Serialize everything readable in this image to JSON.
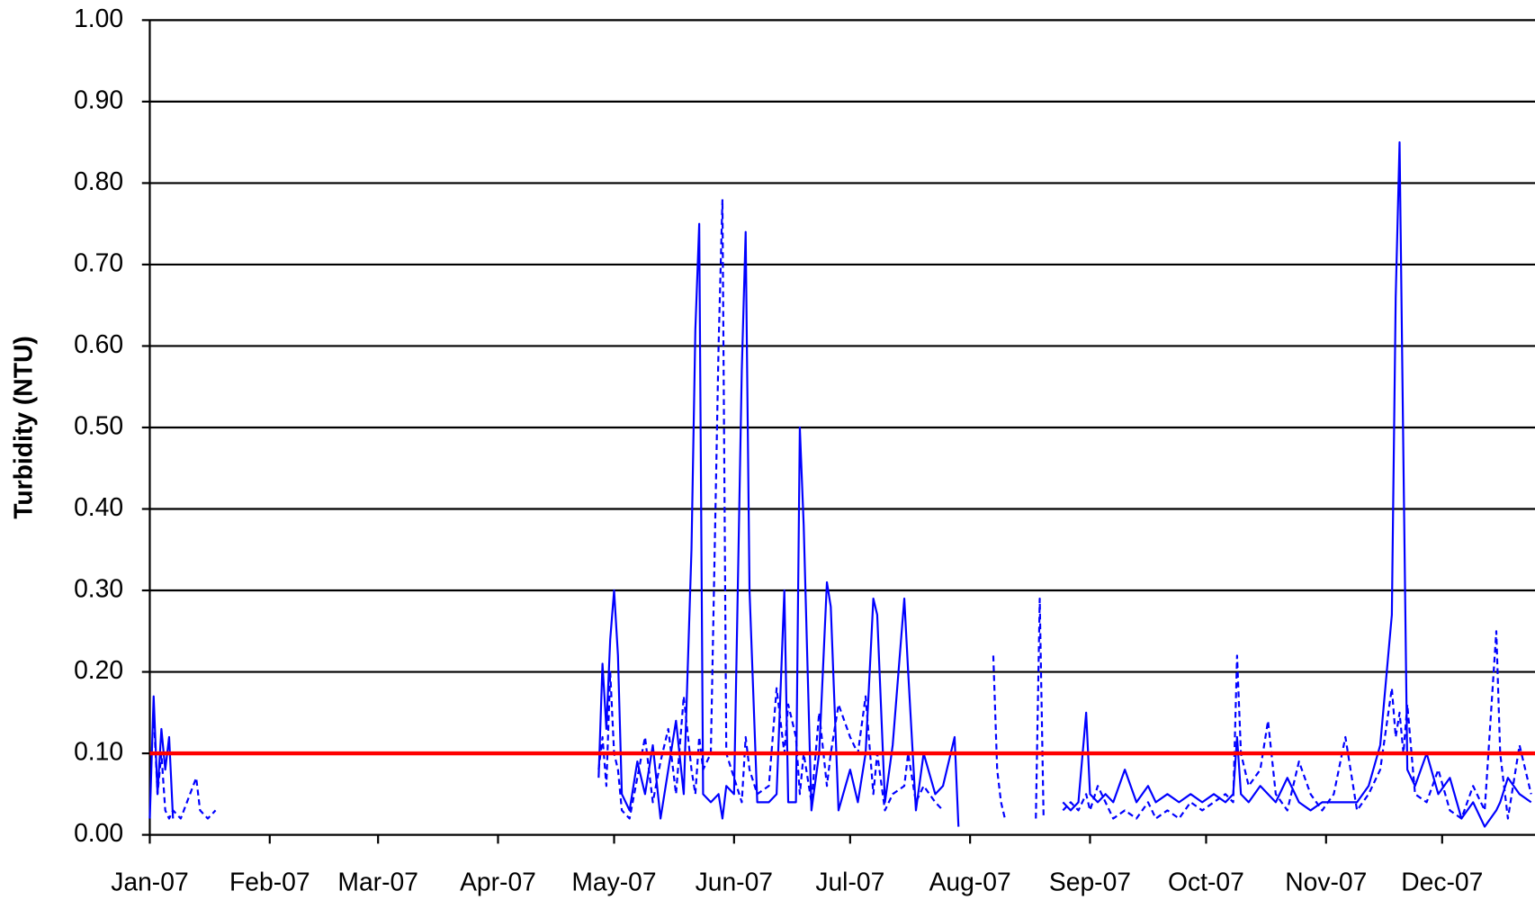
{
  "chart_data": {
    "type": "line",
    "y_label": "Turbidity (NTU)",
    "xlim": [
      0,
      358
    ],
    "xticks": [
      {
        "value": 0,
        "label": "Jan-07"
      },
      {
        "value": 31,
        "label": "Feb-07"
      },
      {
        "value": 59,
        "label": "Mar-07"
      },
      {
        "value": 90,
        "label": "Apr-07"
      },
      {
        "value": 120,
        "label": "May-07"
      },
      {
        "value": 151,
        "label": "Jun-07"
      },
      {
        "value": 181,
        "label": "Jul-07"
      },
      {
        "value": 212,
        "label": "Aug-07"
      },
      {
        "value": 243,
        "label": "Sep-07"
      },
      {
        "value": 273,
        "label": "Oct-07"
      },
      {
        "value": 304,
        "label": "Nov-07"
      },
      {
        "value": 334,
        "label": "Dec-07"
      }
    ],
    "ylim": [
      0,
      1
    ],
    "yticks": [
      {
        "value": 0,
        "label": "0.00"
      },
      {
        "value": 0.1,
        "label": "0.10"
      },
      {
        "value": 0.2,
        "label": "0.20"
      },
      {
        "value": 0.3,
        "label": "0.30"
      },
      {
        "value": 0.4,
        "label": "0.40"
      },
      {
        "value": 0.5,
        "label": "0.50"
      },
      {
        "value": 0.6,
        "label": "0.60"
      },
      {
        "value": 0.7,
        "label": "0.70"
      },
      {
        "value": 0.8,
        "label": "0.80"
      },
      {
        "value": 0.9,
        "label": "0.90"
      },
      {
        "value": 1,
        "label": "1.00"
      }
    ],
    "grid": true,
    "reference_line": {
      "value": 0.1,
      "color": "#ff0000"
    },
    "x": [
      0,
      1,
      2,
      3,
      4,
      5,
      6,
      8,
      12,
      13,
      15,
      17,
      40,
      116,
      117,
      118,
      119,
      120,
      121,
      122,
      124,
      126,
      128,
      130,
      132,
      134,
      136,
      138,
      140,
      141,
      142,
      143,
      145,
      147,
      148,
      149,
      151,
      153,
      154,
      155,
      157,
      160,
      162,
      164,
      165,
      167,
      168,
      169,
      171,
      173,
      175,
      176,
      178,
      181,
      183,
      185,
      187,
      188,
      190,
      192,
      195,
      196,
      198,
      200,
      203,
      205,
      208,
      209,
      212,
      218,
      219,
      220,
      221,
      223,
      229,
      230,
      231,
      233,
      236,
      238,
      240,
      242,
      243,
      245,
      247,
      249,
      252,
      255,
      258,
      260,
      263,
      266,
      269,
      272,
      275,
      278,
      280,
      281,
      282,
      284,
      287,
      289,
      291,
      294,
      297,
      300,
      303,
      306,
      309,
      312,
      315,
      318,
      321,
      322,
      323,
      324,
      325,
      327,
      330,
      333,
      336,
      339,
      342,
      345,
      348,
      349,
      351,
      354,
      357
    ],
    "series": [
      {
        "color": "#0000ff",
        "dashed": false,
        "values": [
          0.02,
          0.17,
          0.05,
          0.13,
          0.08,
          0.12,
          0.02,
          null,
          null,
          null,
          null,
          null,
          null,
          0.07,
          0.21,
          0.13,
          0.24,
          0.3,
          0.22,
          0.05,
          0.03,
          0.09,
          0.05,
          0.11,
          0.02,
          0.08,
          0.14,
          0.05,
          0.35,
          0.62,
          0.75,
          0.05,
          0.04,
          0.05,
          0.02,
          0.06,
          0.05,
          0.57,
          0.74,
          0.3,
          0.04,
          0.04,
          0.05,
          0.3,
          0.04,
          0.04,
          0.5,
          0.38,
          0.03,
          0.1,
          0.31,
          0.28,
          0.03,
          0.08,
          0.04,
          0.1,
          0.29,
          0.27,
          0.04,
          0.11,
          0.29,
          0.2,
          0.03,
          0.1,
          0.05,
          0.06,
          0.12,
          0.01,
          null,
          null,
          null,
          null,
          null,
          null,
          null,
          null,
          null,
          null,
          0.04,
          0.03,
          0.04,
          0.15,
          0.05,
          0.04,
          0.05,
          0.04,
          0.08,
          0.04,
          0.06,
          0.04,
          0.05,
          0.04,
          0.05,
          0.04,
          0.05,
          0.04,
          0.05,
          0.12,
          0.05,
          0.04,
          0.06,
          0.05,
          0.04,
          0.07,
          0.04,
          0.03,
          0.04,
          0.04,
          0.04,
          0.04,
          0.06,
          0.11,
          0.27,
          0.66,
          0.85,
          0.46,
          0.08,
          0.06,
          0.1,
          0.05,
          0.07,
          0.02,
          0.04,
          0.01,
          0.03,
          0.04,
          0.07,
          0.05,
          0.04
        ]
      },
      {
        "color": "#0000ff",
        "dashed": true,
        "values": [
          null,
          0.15,
          0.05,
          0.1,
          0.03,
          0.02,
          0.03,
          0.02,
          0.07,
          0.03,
          0.02,
          0.03,
          null,
          0.08,
          0.12,
          0.06,
          0.2,
          0.1,
          0.08,
          0.03,
          0.02,
          0.07,
          0.12,
          0.04,
          0.09,
          0.13,
          0.05,
          0.17,
          0.08,
          0.05,
          0.12,
          0.08,
          0.1,
          0.6,
          0.78,
          0.1,
          0.07,
          0.04,
          0.12,
          0.08,
          0.05,
          0.06,
          0.18,
          0.1,
          0.16,
          0.12,
          0.05,
          0.1,
          0.04,
          0.15,
          0.06,
          0.1,
          0.16,
          0.12,
          0.1,
          0.17,
          0.05,
          0.1,
          0.03,
          0.05,
          0.06,
          0.1,
          0.04,
          0.06,
          0.04,
          0.03,
          null,
          null,
          null,
          0.22,
          0.08,
          0.04,
          0.02,
          null,
          0.02,
          0.29,
          0.02,
          null,
          0.03,
          0.04,
          0.03,
          0.05,
          0.03,
          0.06,
          0.04,
          0.02,
          0.03,
          0.02,
          0.04,
          0.02,
          0.03,
          0.02,
          0.04,
          0.03,
          0.04,
          0.05,
          0.04,
          0.22,
          0.1,
          0.06,
          0.08,
          0.14,
          0.05,
          0.03,
          0.09,
          0.05,
          0.03,
          0.05,
          0.12,
          0.03,
          0.05,
          0.08,
          0.18,
          0.12,
          0.15,
          0.1,
          0.16,
          0.05,
          0.04,
          0.08,
          0.03,
          0.02,
          0.06,
          0.03,
          0.25,
          0.1,
          0.02,
          0.11,
          0.05
        ]
      }
    ]
  }
}
